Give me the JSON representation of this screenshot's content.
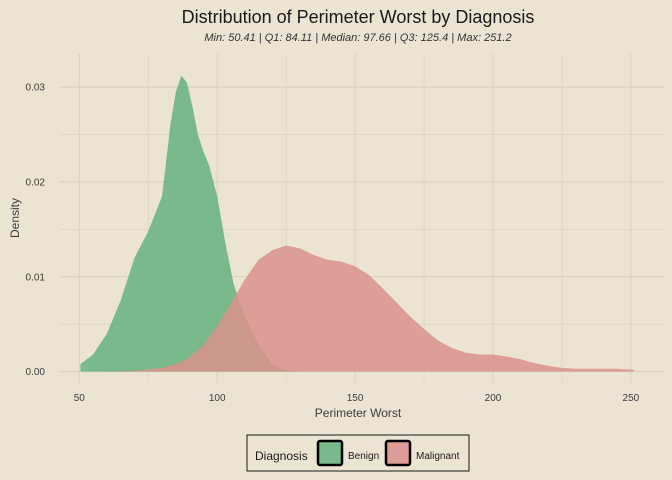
{
  "chart_data": {
    "type": "area",
    "title": "Distribution of Perimeter Worst by Diagnosis",
    "subtitle": "Min: 50.41 | Q1: 84.11 | Median: 97.66 | Q3: 125.4 | Max: 251.2",
    "xlabel": "Perimeter Worst",
    "ylabel": "Density",
    "xlim": [
      43,
      262
    ],
    "ylim": [
      -0.0012,
      0.0335
    ],
    "x_ticks": [
      "50",
      "100",
      "150",
      "200",
      "250"
    ],
    "x_tick_values": [
      50,
      100,
      150,
      200,
      250
    ],
    "y_ticks": [
      "0.00",
      "0.01",
      "0.02",
      "0.03"
    ],
    "y_tick_values": [
      0,
      0.01,
      0.02,
      0.03
    ],
    "grid": true,
    "legend_position": "bottom",
    "legend_title": "Diagnosis",
    "series": [
      {
        "name": "Benign",
        "color": "#66b27f",
        "x": [
          50.41,
          55,
          60,
          65,
          70,
          75,
          80,
          83,
          85,
          87,
          89,
          91,
          93,
          95,
          97,
          100,
          103,
          106,
          110,
          115,
          120,
          124,
          128,
          130
        ],
        "values": [
          0.0008,
          0.0018,
          0.004,
          0.0075,
          0.012,
          0.0148,
          0.0185,
          0.026,
          0.0295,
          0.0312,
          0.0305,
          0.028,
          0.025,
          0.0232,
          0.0218,
          0.0185,
          0.0135,
          0.0092,
          0.0058,
          0.0028,
          0.0008,
          0.0002,
          5e-05,
          0
        ]
      },
      {
        "name": "Malignant",
        "color": "#d9928b",
        "x": [
          60,
          70,
          80,
          85,
          90,
          95,
          100,
          105,
          110,
          115,
          120,
          125,
          130,
          135,
          140,
          145,
          150,
          155,
          160,
          165,
          170,
          175,
          180,
          185,
          190,
          195,
          200,
          205,
          210,
          215,
          220,
          225,
          230,
          235,
          240,
          245,
          251.2
        ],
        "values": [
          0,
          8e-05,
          0.0004,
          0.0008,
          0.0015,
          0.0028,
          0.0048,
          0.0072,
          0.0097,
          0.0118,
          0.0128,
          0.0133,
          0.013,
          0.0123,
          0.0118,
          0.0116,
          0.0111,
          0.0102,
          0.0088,
          0.0073,
          0.0058,
          0.0045,
          0.0033,
          0.0025,
          0.002,
          0.0018,
          0.0018,
          0.0016,
          0.0013,
          0.0009,
          0.0006,
          0.0004,
          0.0003,
          0.0003,
          0.0003,
          0.0003,
          0.0002
        ]
      }
    ]
  }
}
